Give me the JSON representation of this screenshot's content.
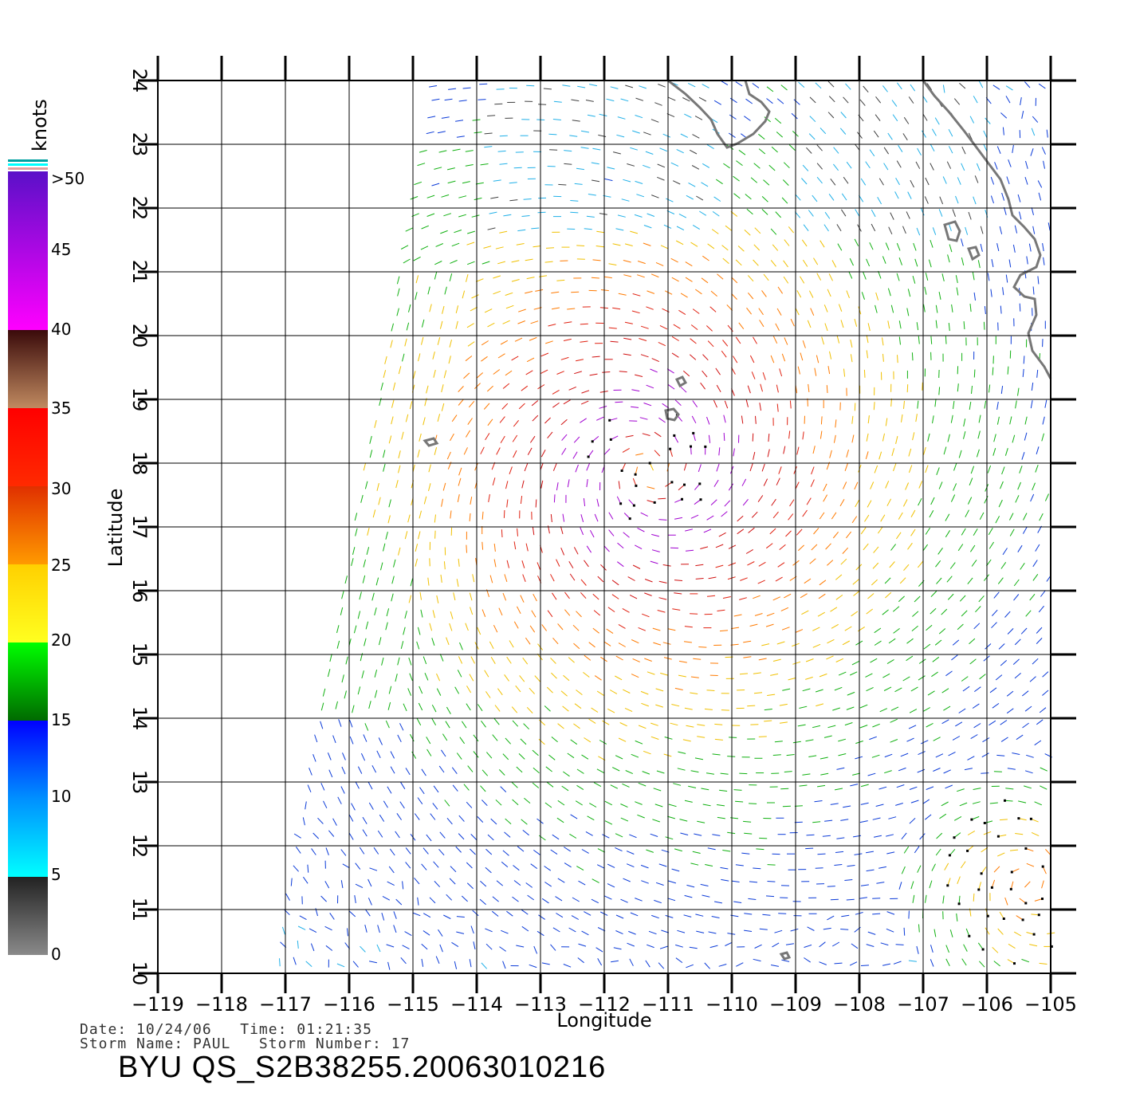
{
  "map": {
    "lon_ticks": [
      "−119",
      "−118",
      "−117",
      "−116",
      "−115",
      "−114",
      "−113",
      "−112",
      "−111",
      "−110",
      "−109",
      "−108",
      "−107",
      "−106",
      "−105"
    ],
    "lat_ticks": [
      "10",
      "11",
      "12",
      "13",
      "14",
      "15",
      "16",
      "17",
      "18",
      "19",
      "20",
      "21",
      "22",
      "23",
      "24"
    ],
    "xlabel": "Longitude",
    "ylabel": "Latitude",
    "lon_range": [
      -119,
      -105
    ],
    "lat_range": [
      10,
      24
    ],
    "storm_center": {
      "lon": -111.3,
      "lat": 17.9
    }
  },
  "colorbar": {
    "unit": "knots",
    "labels": [
      ">50",
      "45",
      "40",
      "35",
      "30",
      "25",
      "20",
      "15",
      "10",
      "5",
      "0"
    ],
    "bands": [
      {
        "from": 50,
        "to": 40,
        "top": "#5a10c8",
        "bottom": "#ff00ff"
      },
      {
        "from": 40,
        "to": 35,
        "top": "#3a0a0a",
        "bottom": "#c08a60"
      },
      {
        "from": 35,
        "to": 30,
        "top": "#ff0000",
        "bottom": "#ff2a00"
      },
      {
        "from": 30,
        "to": 25,
        "top": "#e03000",
        "bottom": "#ff9a00"
      },
      {
        "from": 25,
        "to": 20,
        "top": "#ffd000",
        "bottom": "#ffff20"
      },
      {
        "from": 20,
        "to": 15,
        "top": "#00ff00",
        "bottom": "#006a00"
      },
      {
        "from": 15,
        "to": 10,
        "top": "#0000ff",
        "bottom": "#0090ff"
      },
      {
        "from": 10,
        "to": 5,
        "top": "#0090ff",
        "bottom": "#00ffff"
      },
      {
        "from": 5,
        "to": 0,
        "top": "#222222",
        "bottom": "#8a8a8a"
      }
    ]
  },
  "info": {
    "line1": "Date: 10/24/06   Time: 01:21:35",
    "line2": "Storm Name: PAUL   Storm Number: 17",
    "file_id": "BYU  QS_S2B38255.20063010216"
  }
}
